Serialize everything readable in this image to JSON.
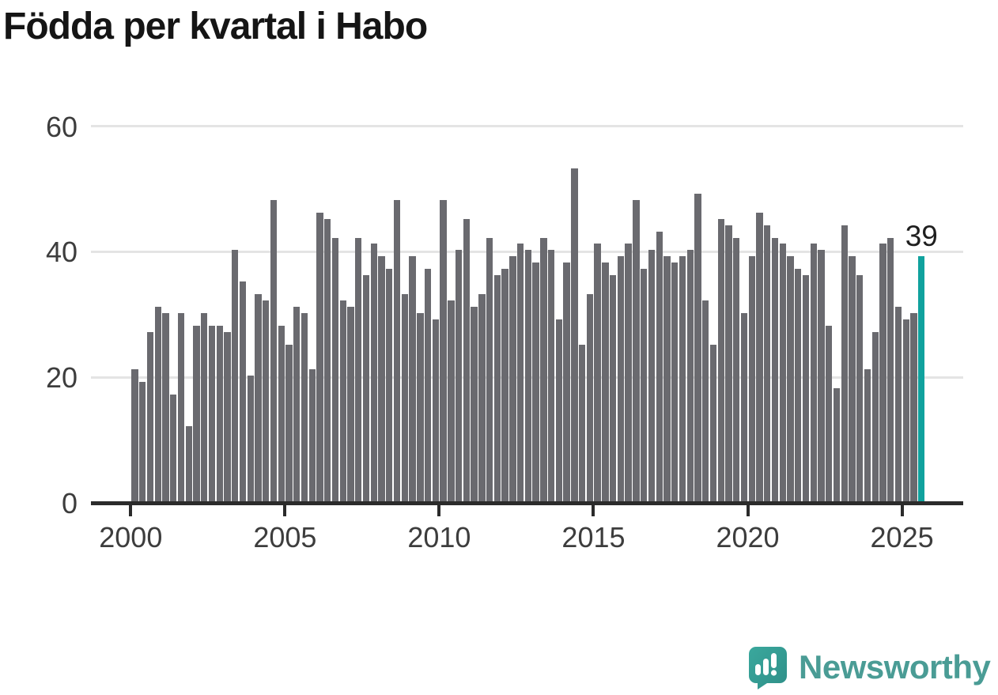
{
  "title": "Födda per kvartal i Habo",
  "chart_data": {
    "type": "bar",
    "title": "Födda per kvartal i Habo",
    "x_start_period": "2000 Q1",
    "x_end_period": "2025 Q3",
    "values": [
      21,
      19,
      27,
      31,
      30,
      17,
      30,
      12,
      28,
      30,
      28,
      28,
      27,
      40,
      35,
      20,
      33,
      32,
      48,
      28,
      25,
      31,
      30,
      21,
      46,
      45,
      42,
      32,
      31,
      42,
      36,
      41,
      39,
      37,
      48,
      33,
      39,
      30,
      37,
      29,
      48,
      32,
      40,
      45,
      31,
      33,
      42,
      36,
      37,
      39,
      41,
      40,
      38,
      42,
      40,
      29,
      38,
      53,
      25,
      33,
      41,
      38,
      36,
      39,
      41,
      48,
      37,
      40,
      43,
      39,
      38,
      39,
      40,
      49,
      32,
      25,
      45,
      44,
      42,
      30,
      39,
      46,
      44,
      42,
      41,
      39,
      37,
      36,
      41,
      40,
      28,
      18,
      44,
      39,
      36,
      21,
      27,
      41,
      42,
      31,
      29,
      30,
      39
    ],
    "highlight_index": 102,
    "highlight_label": "39",
    "yticks": [
      0,
      20,
      40,
      60
    ],
    "ylim": [
      0,
      62
    ],
    "xticks": [
      {
        "label": "2000",
        "quarter_index": 0
      },
      {
        "label": "2005",
        "quarter_index": 20
      },
      {
        "label": "2010",
        "quarter_index": 40
      },
      {
        "label": "2015",
        "quarter_index": 60
      },
      {
        "label": "2020",
        "quarter_index": 80
      },
      {
        "label": "2025",
        "quarter_index": 100
      }
    ],
    "grid": true,
    "legend": "none",
    "bar_color": "#6a6a6f",
    "highlight_color": "#10a29e"
  },
  "colors": {
    "axis": "#2b2b2b",
    "gridline": "#e4e4e4",
    "tick_text": "#3d3d3d",
    "title_text": "#151515",
    "brand_teal": "#4a9c95"
  },
  "branding": {
    "logo_text": "Newsworthy"
  }
}
